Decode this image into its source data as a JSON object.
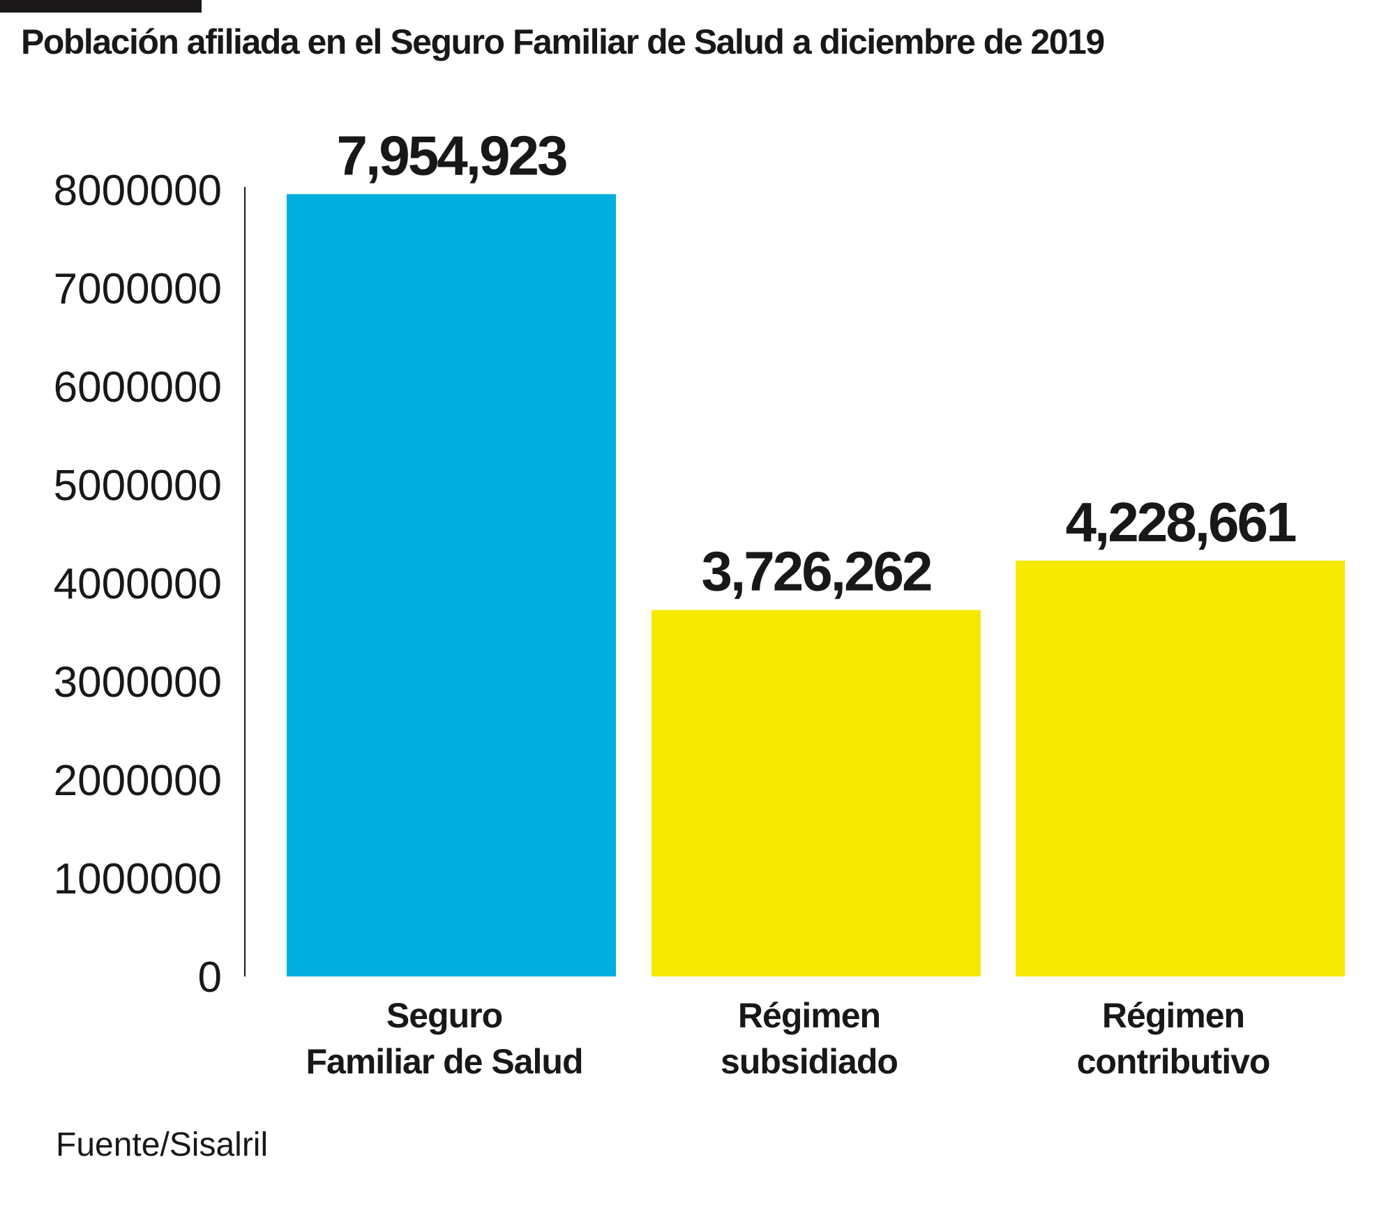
{
  "title": "Población afiliada en el Seguro Familiar de Salud a diciembre de 2019",
  "source": "Fuente/Sisalril",
  "chart_data": {
    "type": "bar",
    "categories": [
      [
        "Seguro",
        "Familiar de Salud"
      ],
      [
        "Régimen",
        "subsidiado"
      ],
      [
        "Régimen",
        "contributivo"
      ]
    ],
    "values": [
      7954923,
      3726262,
      4228661
    ],
    "value_labels": [
      "7,954,923",
      "3,726,262",
      "4,228,661"
    ],
    "colors": [
      "#00aee0",
      "#f6e900",
      "#f6e900"
    ],
    "yticks": [
      "0",
      "1000000",
      "2000000",
      "3000000",
      "4000000",
      "5000000",
      "6000000",
      "7000000",
      "8000000"
    ],
    "ylim": [
      0,
      8000000
    ],
    "grid": false,
    "legend": "none"
  }
}
